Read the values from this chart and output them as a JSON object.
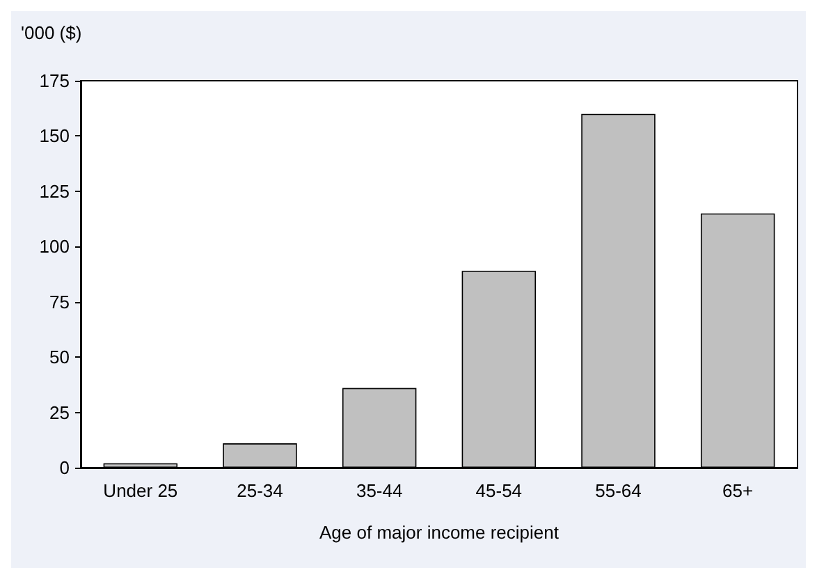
{
  "chart_data": {
    "type": "bar",
    "ylabel": "'000 ($)",
    "xlabel": "Age of major income recipient",
    "categories": [
      "Under 25",
      "25-34",
      "35-44",
      "45-54",
      "55-64",
      "65+"
    ],
    "values": [
      2,
      11,
      36,
      89,
      160,
      115
    ],
    "color": "#c0c0c0",
    "ylim": [
      0,
      175
    ],
    "yticks": [
      0,
      25,
      50,
      75,
      100,
      125,
      150,
      175
    ],
    "grid": false
  }
}
